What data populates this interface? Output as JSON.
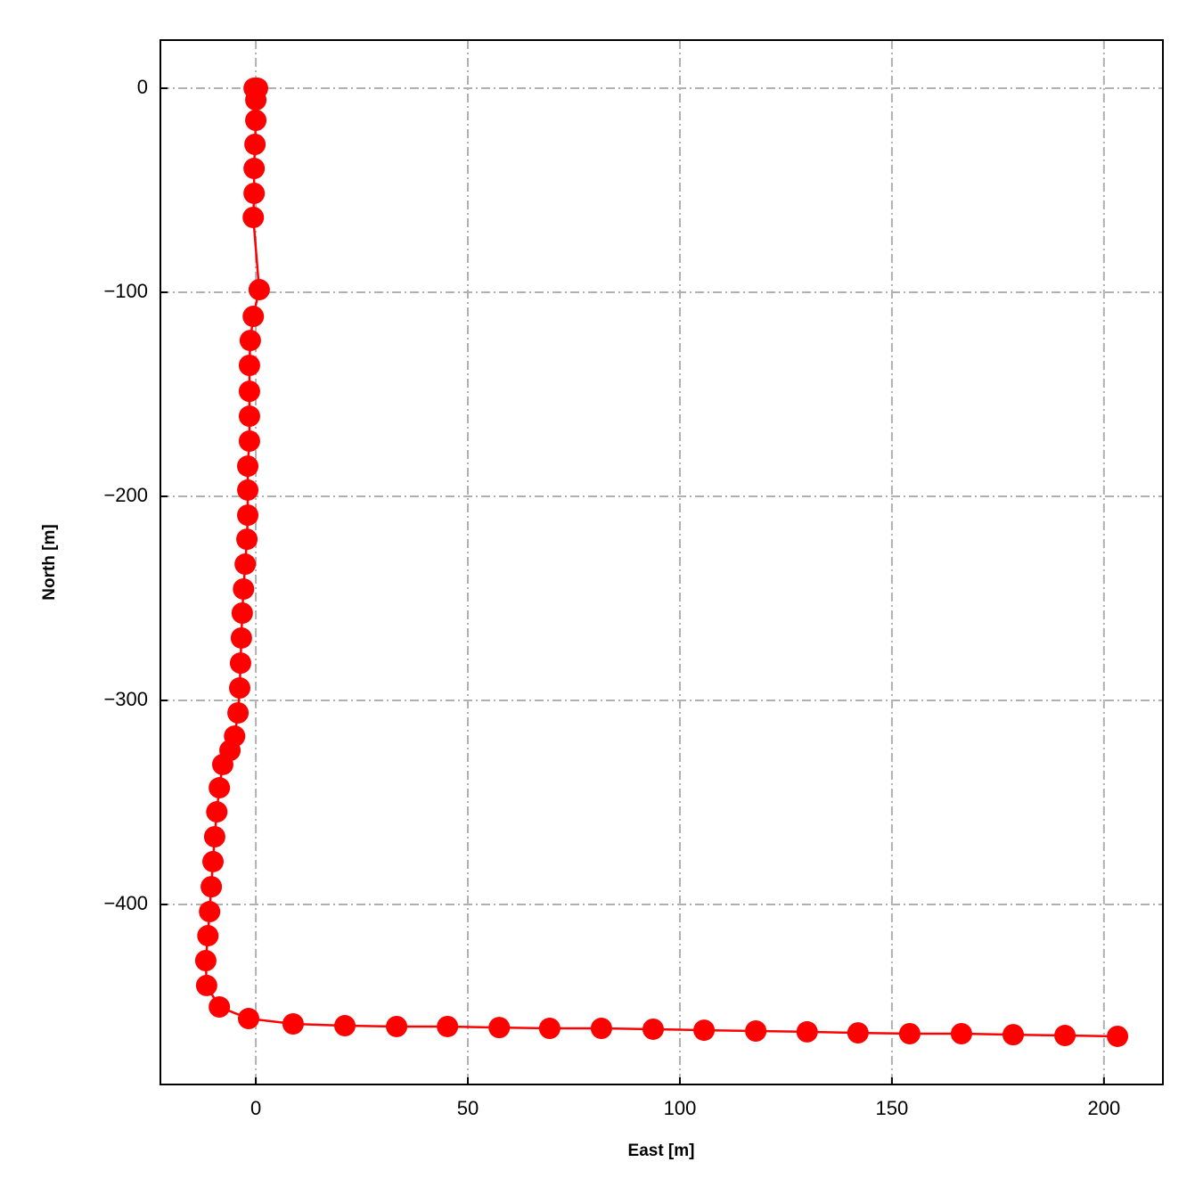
{
  "chart_data": {
    "type": "line",
    "x_label": "East [m]",
    "y_label": "North [m]",
    "x": [
      0,
      0.4,
      -0.4,
      0,
      0,
      -0.2,
      -0.4,
      -0.4,
      -0.6,
      0.8,
      -0.6,
      -1.3,
      -1.5,
      -1.5,
      -1.5,
      -1.5,
      -1.9,
      -1.9,
      -1.9,
      -2.1,
      -2.5,
      -2.9,
      -3.2,
      -3.4,
      -3.6,
      -3.8,
      -4.2,
      -5.0,
      -6.1,
      -7.8,
      -8.6,
      -9.2,
      -9.7,
      -10.1,
      -10.5,
      -10.9,
      -11.3,
      -11.8,
      -11.6,
      -8.6,
      -1.7,
      8.8,
      21.0,
      33.2,
      45.2,
      57.4,
      69.3,
      81.5,
      93.7,
      105.7,
      117.9,
      130.0,
      142.0,
      154.2,
      166.4,
      178.6,
      190.8,
      203.2
    ],
    "series": [
      {
        "color": "#ff0000",
        "values": [
          0,
          0,
          0,
          -5.7,
          -15.7,
          -27.5,
          -39.3,
          -51.5,
          -63.3,
          -98.7,
          -111.8,
          -123.6,
          -135.8,
          -148.5,
          -160.7,
          -172.9,
          -185.2,
          -196.9,
          -209.2,
          -221.0,
          -233.2,
          -245.4,
          -257.2,
          -269.4,
          -281.7,
          -293.9,
          -306.1,
          -317.5,
          -324.5,
          -331.4,
          -342.8,
          -354.6,
          -366.8,
          -379.0,
          -391.3,
          -403.5,
          -415.3,
          -427.5,
          -439.7,
          -450.2,
          -455.9,
          -458.5,
          -459.4,
          -459.8,
          -459.8,
          -460.3,
          -460.7,
          -460.7,
          -461.1,
          -461.6,
          -462.0,
          -462.4,
          -462.9,
          -463.3,
          -463.3,
          -463.8,
          -464.2,
          -464.6
        ]
      }
    ],
    "xlim": [
      -22.5,
      213.9
    ],
    "ylim": [
      -488.2,
      23.6
    ],
    "xticks": [
      0,
      50,
      100,
      150,
      200
    ],
    "yticks": [
      0,
      {
        "value": -100,
        "label": "−100"
      },
      {
        "value": -200,
        "label": "−200"
      },
      {
        "value": -300,
        "label": "−300"
      },
      {
        "value": -400,
        "label": "−400"
      }
    ],
    "grid": true
  }
}
